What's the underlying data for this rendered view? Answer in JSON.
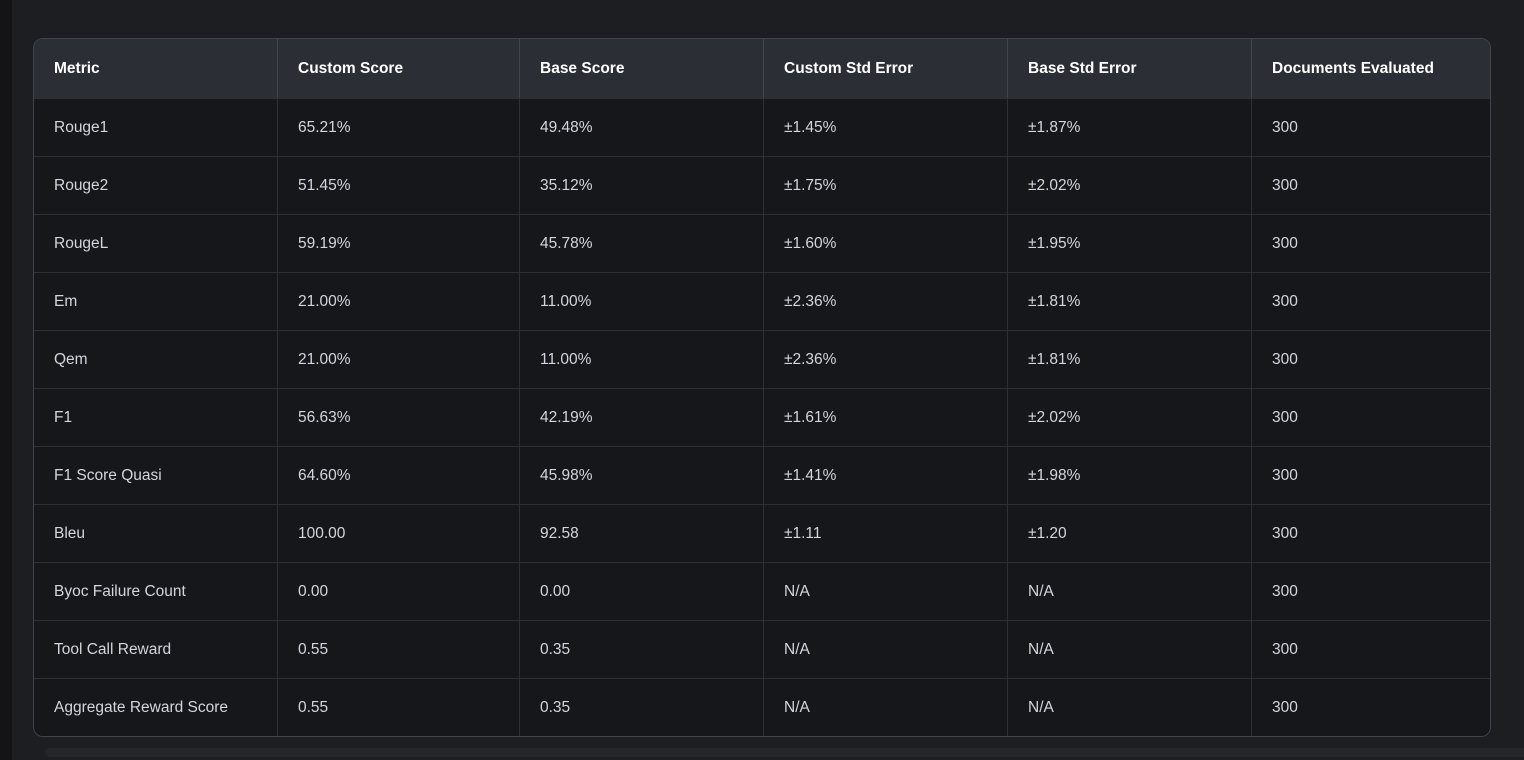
{
  "colors": {
    "page_bg": "#1d1e22",
    "page_edge": "#141417",
    "bottom_band": "#25262b",
    "table_border": "#41444b",
    "header_bg": "#2b2e34",
    "header_text": "#ffffff",
    "row_bg": "#16171b",
    "row_divider": "#2e3036",
    "cell_text": "#d3d6db"
  },
  "table": {
    "columns": [
      "Metric",
      "Custom Score",
      "Base Score",
      "Custom Std Error",
      "Base Std Error",
      "Documents Evaluated"
    ],
    "rows": [
      [
        "Rouge1",
        "65.21%",
        "49.48%",
        "±1.45%",
        "±1.87%",
        "300"
      ],
      [
        "Rouge2",
        "51.45%",
        "35.12%",
        "±1.75%",
        "±2.02%",
        "300"
      ],
      [
        "RougeL",
        "59.19%",
        "45.78%",
        "±1.60%",
        "±1.95%",
        "300"
      ],
      [
        "Em",
        "21.00%",
        "11.00%",
        "±2.36%",
        "±1.81%",
        "300"
      ],
      [
        "Qem",
        "21.00%",
        "11.00%",
        "±2.36%",
        "±1.81%",
        "300"
      ],
      [
        "F1",
        "56.63%",
        "42.19%",
        "±1.61%",
        "±2.02%",
        "300"
      ],
      [
        "F1 Score Quasi",
        "64.60%",
        "45.98%",
        "±1.41%",
        "±1.98%",
        "300"
      ],
      [
        "Bleu",
        "100.00",
        "92.58",
        "±1.11",
        "±1.20",
        "300"
      ],
      [
        "Byoc Failure Count",
        "0.00",
        "0.00",
        "N/A",
        "N/A",
        "300"
      ],
      [
        "Tool Call Reward",
        "0.55",
        "0.35",
        "N/A",
        "N/A",
        "300"
      ],
      [
        "Aggregate Reward Score",
        "0.55",
        "0.35",
        "N/A",
        "N/A",
        "300"
      ]
    ]
  }
}
